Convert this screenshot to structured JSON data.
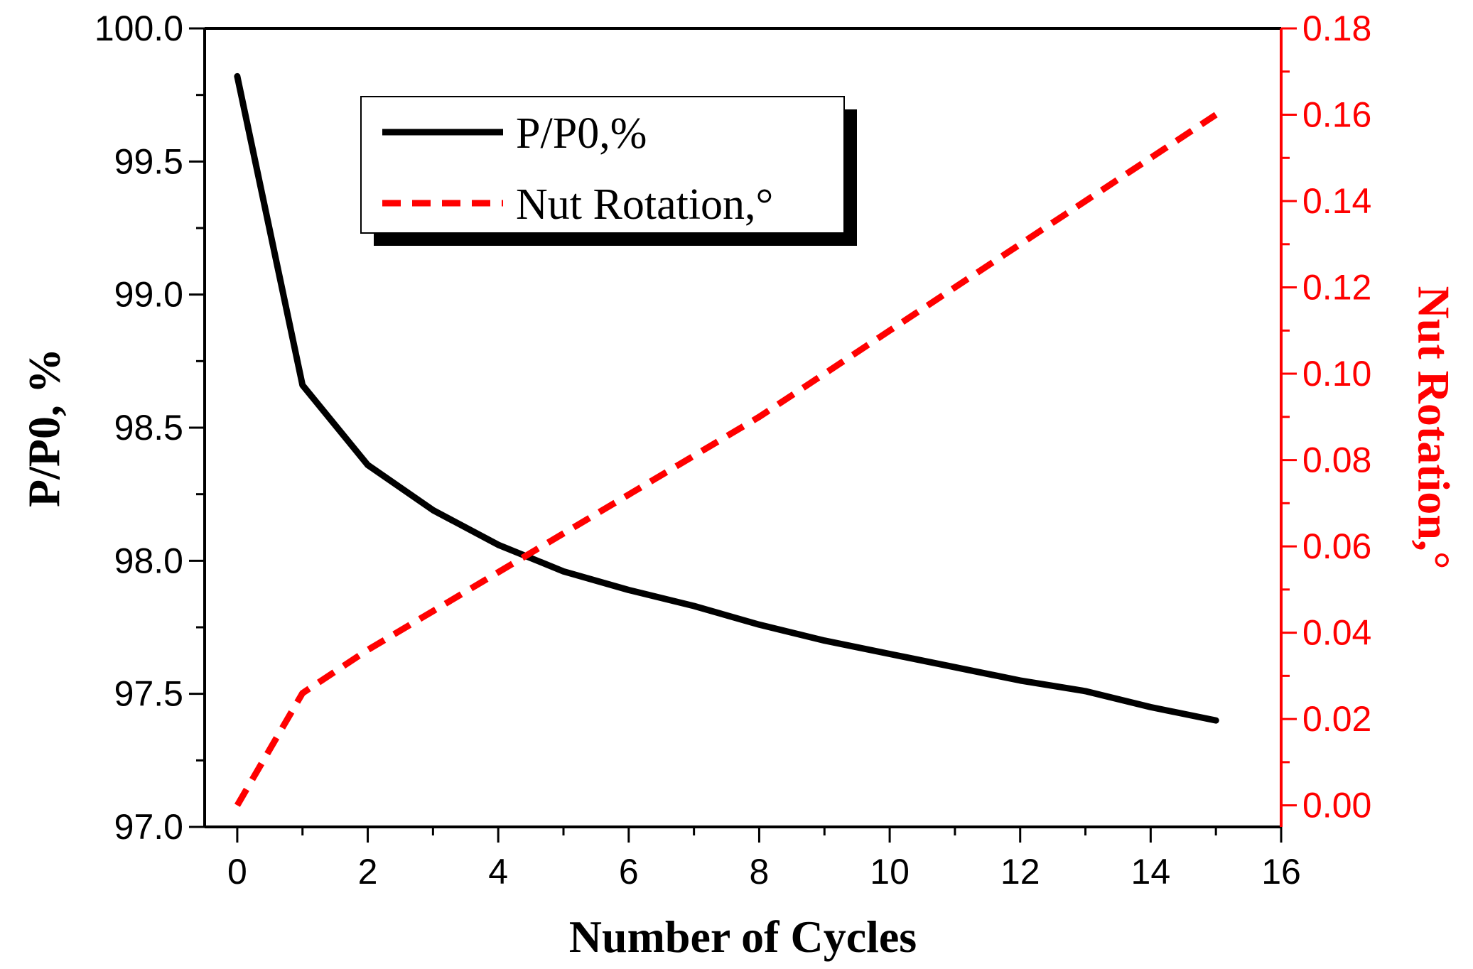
{
  "chart_data": {
    "type": "line",
    "title": "",
    "xlabel": "Number of Cycles",
    "ylabel_left": "P/P0, %",
    "ylabel_right": "Nut Rotation,°",
    "xlim": [
      -0.5,
      16
    ],
    "ylim_left": [
      97.0,
      100.0
    ],
    "ylim_right": [
      -0.005,
      0.18
    ],
    "x_ticks": [
      "0",
      "2",
      "4",
      "6",
      "8",
      "10",
      "12",
      "14",
      "16"
    ],
    "y_left_ticks": [
      "97.0",
      "97.5",
      "98.0",
      "98.5",
      "99.0",
      "99.5",
      "100.0"
    ],
    "y_right_ticks": [
      "0.00",
      "0.02",
      "0.04",
      "0.06",
      "0.08",
      "0.10",
      "0.12",
      "0.14",
      "0.16",
      "0.18"
    ],
    "grid": false,
    "legend_position": "top-left",
    "colors": {
      "left_axis": "#000000",
      "right_axis": "#ff0000"
    },
    "series": [
      {
        "name": "P/P0,%",
        "axis": "left",
        "style": "solid",
        "color": "#000000",
        "x": [
          0,
          1,
          2,
          3,
          4,
          5,
          6,
          7,
          8,
          9,
          10,
          11,
          12,
          13,
          14,
          15
        ],
        "values": [
          99.82,
          98.66,
          98.36,
          98.19,
          98.06,
          97.96,
          97.89,
          97.83,
          97.76,
          97.7,
          97.65,
          97.6,
          97.55,
          97.51,
          97.45,
          97.4
        ]
      },
      {
        "name": "Nut Rotation,°",
        "axis": "right",
        "style": "dashed",
        "color": "#ff0000",
        "x": [
          0,
          1,
          2,
          3,
          4,
          5,
          6,
          7,
          8,
          9,
          10,
          11,
          12,
          13,
          14,
          15
        ],
        "values": [
          0.0,
          0.026,
          0.036,
          0.045,
          0.054,
          0.063,
          0.072,
          0.081,
          0.09,
          0.1,
          0.11,
          0.12,
          0.13,
          0.14,
          0.15,
          0.16
        ]
      }
    ]
  }
}
